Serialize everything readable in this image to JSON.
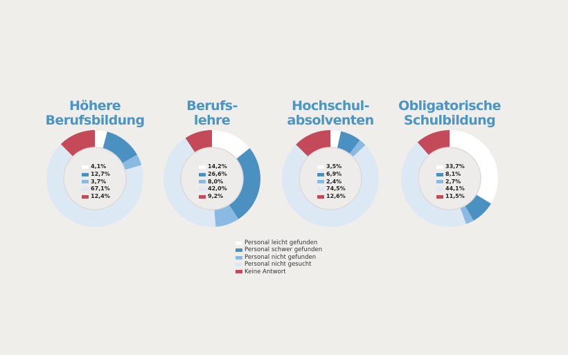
{
  "chart_data": {
    "type": "pie",
    "categories": [
      "Personal leicht gefunden",
      "Personal schwer gefunden",
      "Personal nicht gefunden",
      "Personal nicht gesucht",
      "Keine Antwort"
    ],
    "colors": [
      "#ffffff",
      "#4a90c0",
      "#8ab9e3",
      "#dce9f5",
      "#c44a5a"
    ],
    "charts": [
      {
        "title": [
          "Höhere",
          "Berufsbildung"
        ],
        "values": [
          4.1,
          12.7,
          3.7,
          67.1,
          12.4
        ],
        "labels": [
          "4,1%",
          "12,7%",
          "3,7%",
          "67,1%",
          "12,4%"
        ]
      },
      {
        "title": [
          "Berufs-",
          "lehre"
        ],
        "values": [
          14.2,
          26.6,
          8.0,
          42.0,
          9.2
        ],
        "labels": [
          "14,2%",
          "26,6%",
          "8,0%",
          "42,0%",
          "9,2%"
        ]
      },
      {
        "title": [
          "Hochschul-",
          "absolventen"
        ],
        "values": [
          3.5,
          6.9,
          2.4,
          74.5,
          12.6
        ],
        "labels": [
          "3,5%",
          "6,9%",
          "2,4%",
          "74,5%",
          "12,6%"
        ]
      },
      {
        "title": [
          "Obligatorische",
          "Schulbildung"
        ],
        "values": [
          33.7,
          8.1,
          2.7,
          44.1,
          11.5
        ],
        "labels": [
          "33,7%",
          "8,1%",
          "2,7%",
          "44,1%",
          "11,5%"
        ]
      }
    ],
    "legend_placement": "bottom-center"
  }
}
